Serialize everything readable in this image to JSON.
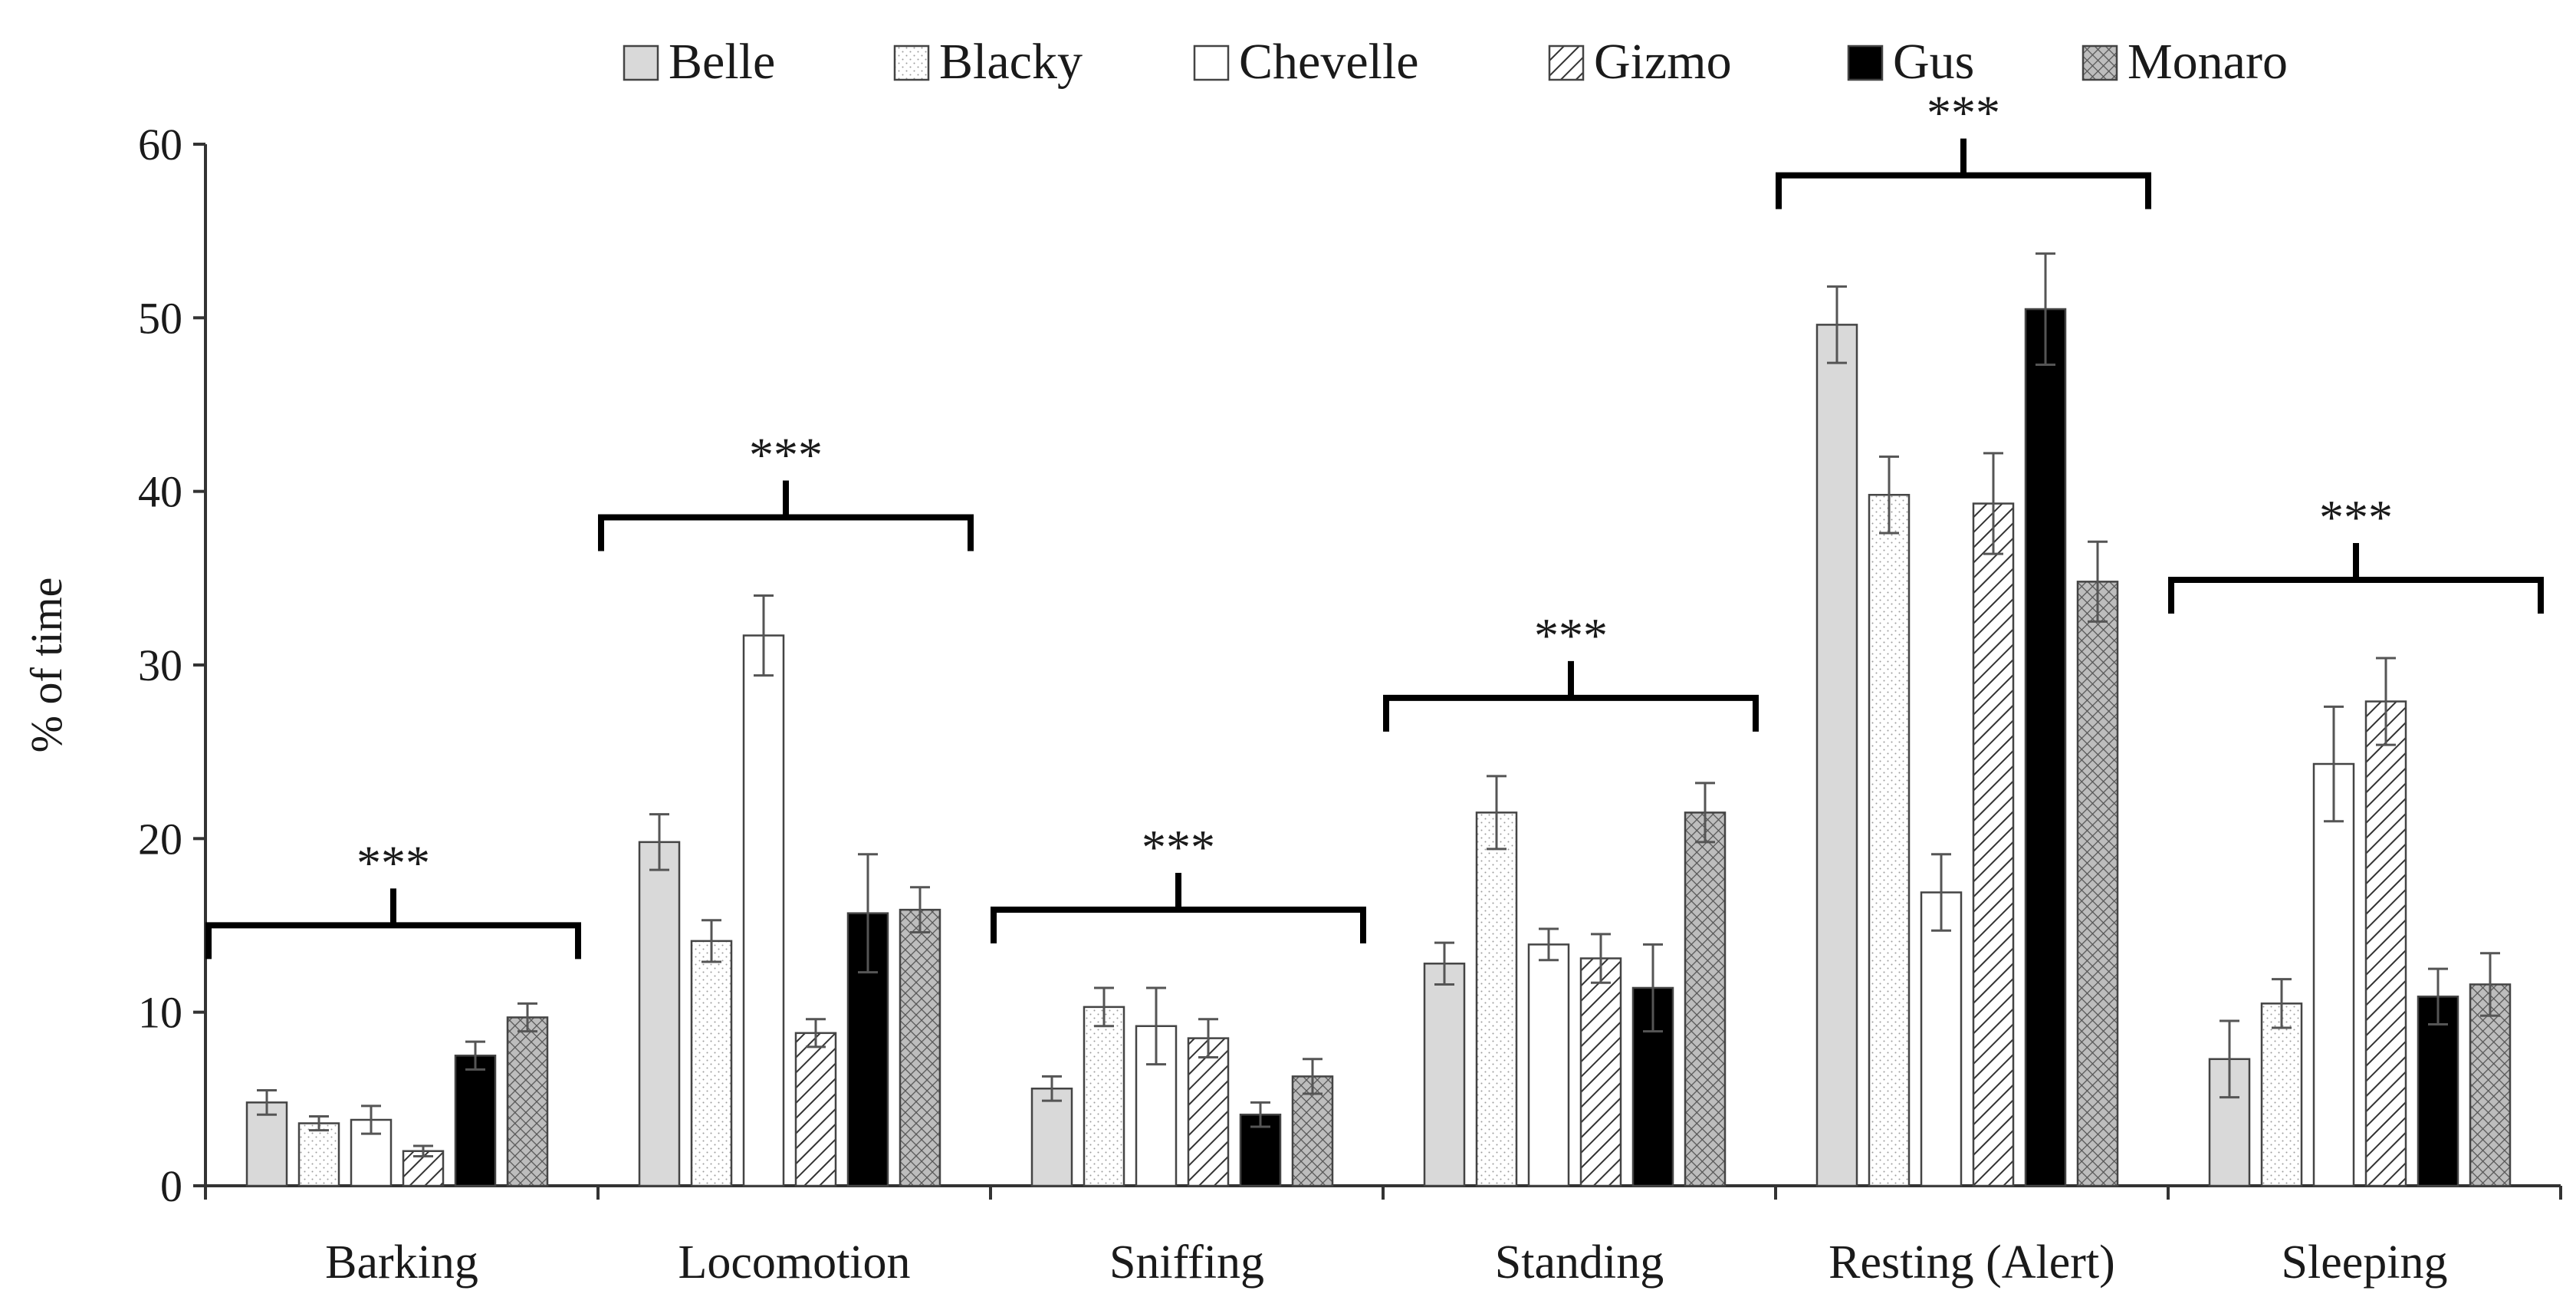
{
  "chart_data": {
    "type": "bar",
    "title": "",
    "xlabel": "",
    "ylabel": "% of time",
    "ylim": [
      0,
      60
    ],
    "yticks": [
      0,
      10,
      20,
      30,
      40,
      50,
      60
    ],
    "grid": false,
    "legend_position": "top",
    "categories": [
      "Barking",
      "Locomotion",
      "Sniffing",
      "Standing",
      "Resting (Alert)",
      "Sleeping"
    ],
    "significance": [
      "***",
      "***",
      "***",
      "***",
      "***",
      "***"
    ],
    "series": [
      {
        "name": "Belle",
        "pattern": "light-gray",
        "values": [
          4.8,
          19.8,
          5.6,
          12.8,
          49.6,
          7.3
        ],
        "errors": [
          0.7,
          1.6,
          0.7,
          1.2,
          2.2,
          2.2
        ]
      },
      {
        "name": "Blacky",
        "pattern": "white-dotted",
        "values": [
          3.6,
          14.1,
          10.3,
          21.5,
          39.8,
          10.5
        ],
        "errors": [
          0.4,
          1.2,
          1.1,
          2.1,
          2.2,
          1.4
        ]
      },
      {
        "name": "Chevelle",
        "pattern": "white",
        "values": [
          3.8,
          31.7,
          9.2,
          13.9,
          16.9,
          24.3
        ],
        "errors": [
          0.8,
          2.3,
          2.2,
          0.9,
          2.2,
          3.3
        ]
      },
      {
        "name": "Gizmo",
        "pattern": "diagonal",
        "values": [
          2.0,
          8.8,
          8.5,
          13.1,
          39.3,
          27.9
        ],
        "errors": [
          0.3,
          0.8,
          1.1,
          1.4,
          2.9,
          2.5
        ]
      },
      {
        "name": "Gus",
        "pattern": "black",
        "values": [
          7.5,
          15.7,
          4.1,
          11.4,
          50.5,
          10.9
        ],
        "errors": [
          0.8,
          3.4,
          0.7,
          2.5,
          3.2,
          1.6
        ]
      },
      {
        "name": "Monaro",
        "pattern": "crosshatch",
        "values": [
          9.7,
          15.9,
          6.3,
          21.5,
          34.8,
          11.6
        ],
        "errors": [
          0.8,
          1.3,
          1.0,
          1.7,
          2.3,
          1.8
        ]
      }
    ]
  }
}
